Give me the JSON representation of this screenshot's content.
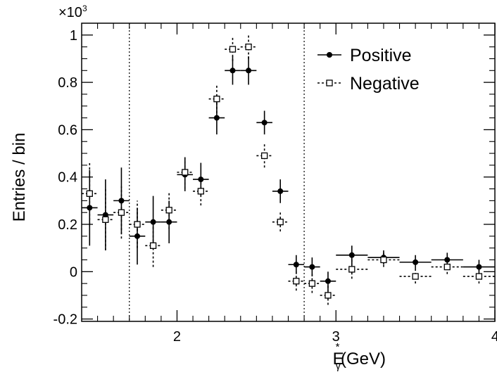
{
  "chart_data": {
    "type": "scatter",
    "title": "",
    "xlabel": "E",
    "xlabel_superscript": "*",
    "xlabel_subscript": "γ",
    "xlabel_unit": "(GeV)",
    "ylabel": "Entries / bin",
    "exponent_label": "×10",
    "exponent_power": "3",
    "xlim": [
      1.4,
      4.0
    ],
    "ylim": [
      -0.21,
      1.05
    ],
    "x_ticks": [
      2,
      3,
      4
    ],
    "x_tick_labels": [
      "2",
      "3",
      "4"
    ],
    "y_ticks": [
      -0.2,
      0,
      0.2,
      0.4,
      0.6,
      0.8,
      1
    ],
    "y_tick_labels": [
      "-0.2",
      "0",
      "0.2",
      "0.4",
      "0.6",
      "0.8",
      "1"
    ],
    "vertical_lines": [
      1.7,
      2.8
    ],
    "grid": false,
    "legend_position": "top-right",
    "series": [
      {
        "name": "Positive",
        "marker": "filled-circle",
        "line_style": "solid",
        "color": "#000000",
        "points": [
          {
            "x": 1.45,
            "y": 0.27,
            "xerr": 0.05,
            "yerr": 0.16
          },
          {
            "x": 1.55,
            "y": 0.24,
            "xerr": 0.05,
            "yerr": 0.15
          },
          {
            "x": 1.65,
            "y": 0.3,
            "xerr": 0.05,
            "yerr": 0.14
          },
          {
            "x": 1.75,
            "y": 0.15,
            "xerr": 0.05,
            "yerr": 0.12
          },
          {
            "x": 1.85,
            "y": 0.21,
            "xerr": 0.05,
            "yerr": 0.11
          },
          {
            "x": 1.95,
            "y": 0.21,
            "xerr": 0.05,
            "yerr": 0.09
          },
          {
            "x": 2.05,
            "y": 0.41,
            "xerr": 0.05,
            "yerr": 0.07
          },
          {
            "x": 2.15,
            "y": 0.39,
            "xerr": 0.05,
            "yerr": 0.07
          },
          {
            "x": 2.25,
            "y": 0.65,
            "xerr": 0.05,
            "yerr": 0.07
          },
          {
            "x": 2.35,
            "y": 0.85,
            "xerr": 0.05,
            "yerr": 0.06
          },
          {
            "x": 2.45,
            "y": 0.85,
            "xerr": 0.05,
            "yerr": 0.06
          },
          {
            "x": 2.55,
            "y": 0.63,
            "xerr": 0.05,
            "yerr": 0.05
          },
          {
            "x": 2.65,
            "y": 0.34,
            "xerr": 0.05,
            "yerr": 0.05
          },
          {
            "x": 2.75,
            "y": 0.03,
            "xerr": 0.05,
            "yerr": 0.04
          },
          {
            "x": 2.85,
            "y": 0.02,
            "xerr": 0.05,
            "yerr": 0.04
          },
          {
            "x": 2.95,
            "y": -0.04,
            "xerr": 0.05,
            "yerr": 0.04
          },
          {
            "x": 3.1,
            "y": 0.07,
            "xerr": 0.1,
            "yerr": 0.04
          },
          {
            "x": 3.3,
            "y": 0.06,
            "xerr": 0.1,
            "yerr": 0.03
          },
          {
            "x": 3.5,
            "y": 0.04,
            "xerr": 0.1,
            "yerr": 0.03
          },
          {
            "x": 3.7,
            "y": 0.05,
            "xerr": 0.1,
            "yerr": 0.03
          },
          {
            "x": 3.9,
            "y": 0.02,
            "xerr": 0.1,
            "yerr": 0.03
          }
        ]
      },
      {
        "name": "Negative",
        "marker": "open-square",
        "line_style": "dotted",
        "color": "#000000",
        "points": [
          {
            "x": 1.45,
            "y": 0.33,
            "xerr": 0.05,
            "yerr": 0.13
          },
          {
            "x": 1.55,
            "y": 0.22,
            "xerr": 0.05,
            "yerr": 0.13
          },
          {
            "x": 1.65,
            "y": 0.25,
            "xerr": 0.05,
            "yerr": 0.11
          },
          {
            "x": 1.75,
            "y": 0.2,
            "xerr": 0.05,
            "yerr": 0.1
          },
          {
            "x": 1.85,
            "y": 0.11,
            "xerr": 0.05,
            "yerr": 0.09
          },
          {
            "x": 1.95,
            "y": 0.26,
            "xerr": 0.05,
            "yerr": 0.08
          },
          {
            "x": 2.05,
            "y": 0.42,
            "xerr": 0.05,
            "yerr": 0.07
          },
          {
            "x": 2.15,
            "y": 0.34,
            "xerr": 0.05,
            "yerr": 0.06
          },
          {
            "x": 2.25,
            "y": 0.73,
            "xerr": 0.05,
            "yerr": 0.06
          },
          {
            "x": 2.35,
            "y": 0.94,
            "xerr": 0.05,
            "yerr": 0.05
          },
          {
            "x": 2.45,
            "y": 0.95,
            "xerr": 0.05,
            "yerr": 0.05
          },
          {
            "x": 2.55,
            "y": 0.49,
            "xerr": 0.05,
            "yerr": 0.05
          },
          {
            "x": 2.65,
            "y": 0.21,
            "xerr": 0.05,
            "yerr": 0.04
          },
          {
            "x": 2.75,
            "y": -0.04,
            "xerr": 0.05,
            "yerr": 0.04
          },
          {
            "x": 2.85,
            "y": -0.05,
            "xerr": 0.05,
            "yerr": 0.04
          },
          {
            "x": 2.95,
            "y": -0.1,
            "xerr": 0.05,
            "yerr": 0.04
          },
          {
            "x": 3.1,
            "y": 0.01,
            "xerr": 0.1,
            "yerr": 0.04
          },
          {
            "x": 3.3,
            "y": 0.05,
            "xerr": 0.1,
            "yerr": 0.03
          },
          {
            "x": 3.5,
            "y": -0.02,
            "xerr": 0.1,
            "yerr": 0.03
          },
          {
            "x": 3.7,
            "y": 0.02,
            "xerr": 0.1,
            "yerr": 0.03
          },
          {
            "x": 3.9,
            "y": -0.02,
            "xerr": 0.1,
            "yerr": 0.03
          }
        ]
      }
    ]
  }
}
